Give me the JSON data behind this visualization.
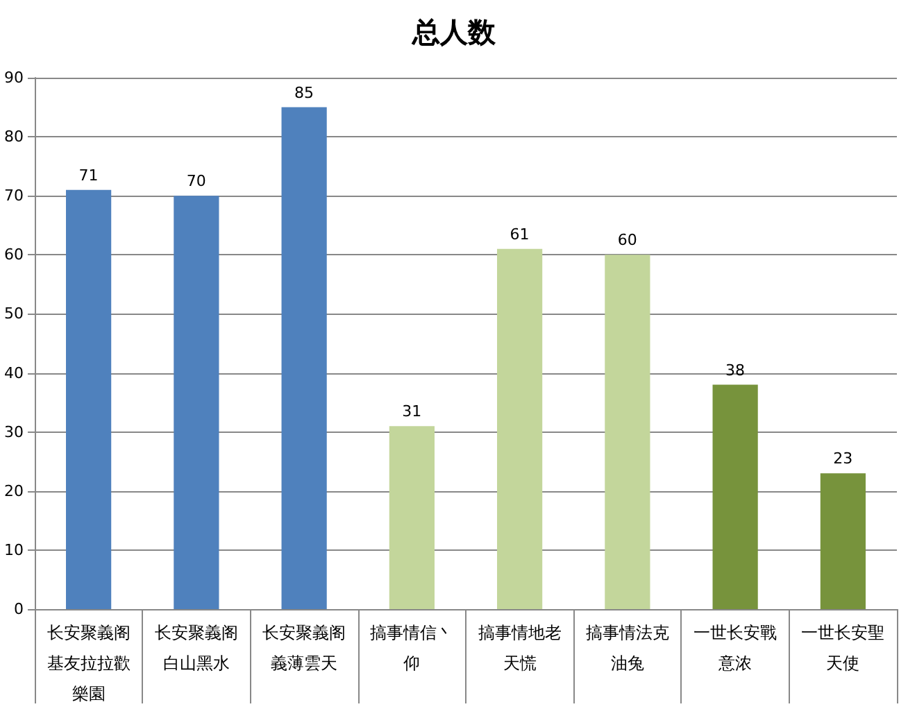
{
  "chart_data": {
    "type": "bar",
    "title": "总人数",
    "categories": [
      "长安聚義阁基友拉拉歡樂園",
      "长安聚義阁白山黑水",
      "长安聚義阁義薄雲天",
      "搞事情信丶仰",
      "搞事情地老天慌",
      "搞事情法克油兔",
      "一世长安戰意浓",
      "一世长安聖天使"
    ],
    "values": [
      71,
      70,
      85,
      31,
      61,
      60,
      38,
      23
    ],
    "colors": [
      "#4f81bd",
      "#4f81bd",
      "#4f81bd",
      "#c3d69b",
      "#c3d69b",
      "#c3d69b",
      "#77933c",
      "#77933c"
    ],
    "data_labels": true,
    "ylim": [
      0,
      90
    ],
    "yticks": [
      0,
      10,
      20,
      30,
      40,
      50,
      60,
      70,
      80,
      90
    ],
    "grid": "y"
  }
}
